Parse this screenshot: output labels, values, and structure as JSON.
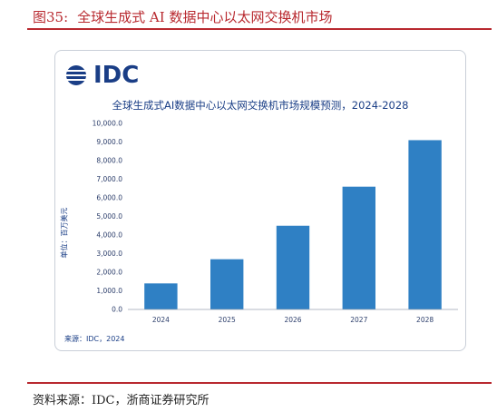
{
  "figure": {
    "number": "图35:",
    "title": "全球生成式 AI 数据中心以太网交换机市场",
    "source": "资料来源：IDC，浙商证券研究所"
  },
  "logo": {
    "text": "IDC",
    "icon": "idc-globe-icon"
  },
  "colors": {
    "bar": "#2f80c4",
    "accent": "#b8292f",
    "text": "#1a3e86"
  },
  "chart_data": {
    "type": "bar",
    "title": "全球生成式AI数据中心以太网交换机市场规模预测，2024-2028",
    "ylabel": "单位：百万美元",
    "xlabel": "",
    "categories": [
      "2024",
      "2025",
      "2026",
      "2027",
      "2028"
    ],
    "values": [
      1400,
      2700,
      4500,
      6600,
      9100
    ],
    "ylim": [
      0,
      10000
    ],
    "yticks": [
      "0.0",
      "1,000.0",
      "2,000.0",
      "3,000.0",
      "4,000.0",
      "5,000.0",
      "6,000.0",
      "7,000.0",
      "8,000.0",
      "9,000.0",
      "10,000.0"
    ],
    "grid": false,
    "source": "来源：IDC，2024"
  }
}
